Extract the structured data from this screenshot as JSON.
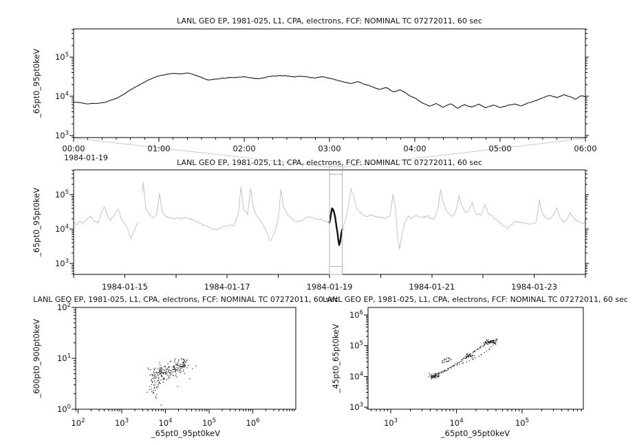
{
  "shared_title": "LANL GEO EP, 1981-025, L1, CPA, electrons, FCF: NOMINAL TC 07272011, 60 sec",
  "chart_data": [
    {
      "id": "zoom-timeseries",
      "type": "line",
      "title": "LANL GEO EP, 1981-025, L1, CPA, electrons, FCF: NOMINAL TC 07272011, 60 sec",
      "ylabel": "_65pt0_95pt0keV",
      "x_date_label": "1984-01-19",
      "x_tick_labels": [
        "00:00",
        "01:00",
        "02:00",
        "03:00",
        "04:00",
        "05:00",
        "06:00"
      ],
      "x_tick_hours": [
        0,
        1,
        2,
        3,
        4,
        5,
        6
      ],
      "x_range_hours": [
        0,
        6
      ],
      "x_minor_step_hours": 0.16667,
      "ylim_exp": [
        2.95,
        5.72
      ],
      "y_major_exponents": [
        3,
        4,
        5
      ],
      "line_color": "#161616",
      "noise": {
        "seed": 3,
        "amplitude": 0.012,
        "substeps": 4
      },
      "series_hour_flux": [
        [
          0,
          7200
        ],
        [
          0.08,
          6900
        ],
        [
          0.17,
          6400
        ],
        [
          0.28,
          6600
        ],
        [
          0.38,
          7100
        ],
        [
          0.5,
          8800
        ],
        [
          0.62,
          12500
        ],
        [
          0.73,
          17500
        ],
        [
          0.83,
          23000
        ],
        [
          0.92,
          28500
        ],
        [
          1,
          33000
        ],
        [
          1.08,
          36000
        ],
        [
          1.17,
          38500
        ],
        [
          1.25,
          37000
        ],
        [
          1.33,
          39500
        ],
        [
          1.42,
          34500
        ],
        [
          1.5,
          30000
        ],
        [
          1.58,
          26000
        ],
        [
          1.67,
          27500
        ],
        [
          1.75,
          29000
        ],
        [
          1.83,
          30000
        ],
        [
          1.92,
          30500
        ],
        [
          2,
          31500
        ],
        [
          2.08,
          29500
        ],
        [
          2.17,
          28000
        ],
        [
          2.25,
          30500
        ],
        [
          2.33,
          33000
        ],
        [
          2.42,
          34000
        ],
        [
          2.5,
          33000
        ],
        [
          2.58,
          31500
        ],
        [
          2.67,
          32500
        ],
        [
          2.75,
          31000
        ],
        [
          2.83,
          29000
        ],
        [
          2.92,
          31500
        ],
        [
          3,
          29000
        ],
        [
          3.08,
          26000
        ],
        [
          3.17,
          23000
        ],
        [
          3.25,
          21000
        ],
        [
          3.33,
          23500
        ],
        [
          3.42,
          20000
        ],
        [
          3.5,
          17500
        ],
        [
          3.58,
          15000
        ],
        [
          3.67,
          16500
        ],
        [
          3.75,
          13000
        ],
        [
          3.83,
          14500
        ],
        [
          3.92,
          11000
        ],
        [
          4,
          9000
        ],
        [
          4.08,
          7000
        ],
        [
          4.17,
          5600
        ],
        [
          4.25,
          6600
        ],
        [
          4.33,
          5200
        ],
        [
          4.42,
          6400
        ],
        [
          4.5,
          5000
        ],
        [
          4.58,
          6100
        ],
        [
          4.67,
          5300
        ],
        [
          4.75,
          6300
        ],
        [
          4.83,
          5100
        ],
        [
          4.92,
          6000
        ],
        [
          5,
          5200
        ],
        [
          5.08,
          5800
        ],
        [
          5.17,
          6400
        ],
        [
          5.25,
          5700
        ],
        [
          5.33,
          6900
        ],
        [
          5.42,
          7800
        ],
        [
          5.5,
          9200
        ],
        [
          5.58,
          10500
        ],
        [
          5.67,
          9200
        ],
        [
          5.75,
          11000
        ],
        [
          5.83,
          9600
        ],
        [
          5.88,
          8400
        ],
        [
          5.95,
          10300
        ],
        [
          6,
          9800
        ]
      ]
    },
    {
      "id": "context-timeseries",
      "type": "line",
      "title": "LANL GEO EP, 1981-025, L1, CPA, electrons, FCF: NOMINAL TC 07272011, 60 sec",
      "ylabel": "_65pt0_95pt0keV",
      "x_tick_days": [
        {
          "day": 15,
          "label": "1984-01-15"
        },
        {
          "day": 17,
          "label": "1984-01-17"
        },
        {
          "day": 19,
          "label": "1984-01-19"
        },
        {
          "day": 21,
          "label": "1984-01-21"
        },
        {
          "day": 23,
          "label": "1984-01-23"
        }
      ],
      "x_range_days": [
        14,
        24
      ],
      "ylim_exp": [
        2.68,
        5.72
      ],
      "y_major_exponents": [
        3,
        4,
        5
      ],
      "line_color": "#c3c3c3",
      "highlight_color": "#111111",
      "selection": {
        "start_day": 19.0,
        "end_day": 19.25,
        "color": "#b0b0b0"
      },
      "gaps": [
        [
          15.26,
          15.34
        ]
      ],
      "noise": {
        "seed": 9,
        "amplitude": 0.034,
        "substeps": 4
      },
      "series_day_flux": [
        [
          14,
          16000
        ],
        [
          14.06,
          13000
        ],
        [
          14.12,
          17000
        ],
        [
          14.18,
          14500
        ],
        [
          14.25,
          19000
        ],
        [
          14.33,
          24000
        ],
        [
          14.4,
          17000
        ],
        [
          14.48,
          15000
        ],
        [
          14.55,
          32000
        ],
        [
          14.6,
          45000
        ],
        [
          14.66,
          24000
        ],
        [
          14.72,
          17000
        ],
        [
          14.8,
          26000
        ],
        [
          14.87,
          38000
        ],
        [
          14.93,
          20000
        ],
        [
          15,
          14000
        ],
        [
          15.06,
          9500
        ],
        [
          15.12,
          5200
        ],
        [
          15.18,
          9000
        ],
        [
          15.24,
          14000
        ],
        [
          15.3,
          17000
        ],
        [
          15.36,
          230000
        ],
        [
          15.41,
          40000
        ],
        [
          15.48,
          26000
        ],
        [
          15.55,
          21000
        ],
        [
          15.62,
          26000
        ],
        [
          15.68,
          110000
        ],
        [
          15.73,
          32000
        ],
        [
          15.8,
          24000
        ],
        [
          15.88,
          21000
        ],
        [
          15.95,
          20000
        ],
        [
          16.03,
          21500
        ],
        [
          16.1,
          19500
        ],
        [
          16.18,
          22000
        ],
        [
          16.26,
          20000
        ],
        [
          16.34,
          18000
        ],
        [
          16.42,
          16000
        ],
        [
          16.5,
          14000
        ],
        [
          16.58,
          12500
        ],
        [
          16.66,
          11000
        ],
        [
          16.74,
          9500
        ],
        [
          16.82,
          10000
        ],
        [
          16.9,
          11000
        ],
        [
          16.98,
          12000
        ],
        [
          17.06,
          13000
        ],
        [
          17.14,
          12500
        ],
        [
          17.22,
          30000
        ],
        [
          17.27,
          170000
        ],
        [
          17.32,
          40000
        ],
        [
          17.4,
          26000
        ],
        [
          17.46,
          150000
        ],
        [
          17.52,
          36000
        ],
        [
          17.6,
          22000
        ],
        [
          17.68,
          15000
        ],
        [
          17.76,
          9000
        ],
        [
          17.84,
          4500
        ],
        [
          17.92,
          7000
        ],
        [
          18,
          20000
        ],
        [
          18.05,
          140000
        ],
        [
          18.1,
          45000
        ],
        [
          18.18,
          26000
        ],
        [
          18.26,
          20000
        ],
        [
          18.34,
          17000
        ],
        [
          18.42,
          16500
        ],
        [
          18.5,
          19000
        ],
        [
          18.58,
          22000
        ],
        [
          18.66,
          21000
        ],
        [
          18.74,
          20000
        ],
        [
          18.82,
          19000
        ],
        [
          18.9,
          17500
        ],
        [
          18.96,
          16000
        ],
        [
          19,
          15000
        ],
        [
          19.03,
          28000
        ],
        [
          19.05,
          40000
        ],
        [
          19.07,
          37000
        ],
        [
          19.09,
          30000
        ],
        [
          19.11,
          22000
        ],
        [
          19.13,
          14000
        ],
        [
          19.15,
          8500
        ],
        [
          19.17,
          5200
        ],
        [
          19.19,
          3400
        ],
        [
          19.21,
          4500
        ],
        [
          19.23,
          7500
        ],
        [
          19.25,
          10000
        ],
        [
          19.28,
          13000
        ],
        [
          19.32,
          20000
        ],
        [
          19.36,
          40000
        ],
        [
          19.42,
          150000
        ],
        [
          19.47,
          90000
        ],
        [
          19.52,
          45000
        ],
        [
          19.58,
          32000
        ],
        [
          19.65,
          26000
        ],
        [
          19.72,
          23000
        ],
        [
          19.8,
          26000
        ],
        [
          19.88,
          24000
        ],
        [
          19.95,
          22500
        ],
        [
          20.02,
          21000
        ],
        [
          20.1,
          20000
        ],
        [
          20.18,
          24000
        ],
        [
          20.24,
          100000
        ],
        [
          20.29,
          38000
        ],
        [
          20.33,
          6000
        ],
        [
          20.37,
          2600
        ],
        [
          20.42,
          7000
        ],
        [
          20.47,
          16000
        ],
        [
          20.54,
          23000
        ],
        [
          20.61,
          21000
        ],
        [
          20.68,
          25000
        ],
        [
          20.75,
          23000
        ],
        [
          20.83,
          22000
        ],
        [
          20.9,
          23500
        ],
        [
          20.97,
          21000
        ],
        [
          21.04,
          19000
        ],
        [
          21.12,
          40000
        ],
        [
          21.17,
          140000
        ],
        [
          21.22,
          60000
        ],
        [
          21.28,
          35000
        ],
        [
          21.35,
          27000
        ],
        [
          21.42,
          24000
        ],
        [
          21.48,
          38000
        ],
        [
          21.53,
          95000
        ],
        [
          21.58,
          48000
        ],
        [
          21.65,
          31000
        ],
        [
          21.72,
          34000
        ],
        [
          21.79,
          60000
        ],
        [
          21.84,
          32000
        ],
        [
          21.9,
          26000
        ],
        [
          21.97,
          27000
        ],
        [
          22.04,
          52000
        ],
        [
          22.09,
          31000
        ],
        [
          22.16,
          25000
        ],
        [
          22.24,
          20000
        ],
        [
          22.32,
          15500
        ],
        [
          22.4,
          12500
        ],
        [
          22.48,
          10500
        ],
        [
          22.56,
          13500
        ],
        [
          22.64,
          17000
        ],
        [
          22.72,
          15500
        ],
        [
          22.8,
          15000
        ],
        [
          22.88,
          14000
        ],
        [
          22.96,
          14500
        ],
        [
          23.04,
          16000
        ],
        [
          23.1,
          70000
        ],
        [
          23.15,
          32000
        ],
        [
          23.22,
          21000
        ],
        [
          23.3,
          19000
        ],
        [
          23.38,
          26000
        ],
        [
          23.44,
          42000
        ],
        [
          23.5,
          22000
        ],
        [
          23.57,
          15500
        ],
        [
          23.64,
          18500
        ],
        [
          23.7,
          30000
        ],
        [
          23.77,
          21000
        ],
        [
          23.85,
          16500
        ],
        [
          23.93,
          15000
        ],
        [
          24,
          14500
        ]
      ]
    },
    {
      "id": "scatter-600-900",
      "type": "scatter",
      "title": "LANL GEO EP, 1981-025, L1, CPA, electrons, FCF: NOMINAL TC 07272011, 60 sec",
      "xlabel": "_65pt0_95pt0keV",
      "ylabel": "_600pt0_900pt0keV",
      "xlim_exp": [
        1.945,
        6.984
      ],
      "x_major_exponents": [
        2,
        3,
        4,
        5,
        6
      ],
      "ylim_exp": [
        0,
        2
      ],
      "y_major_exponents": [
        0,
        1,
        2
      ],
      "dot_color": "#1b1b1b",
      "seed": 7,
      "clusters_logxy": [
        {
          "cx": 3.78,
          "cy": 0.6,
          "sx": 0.1,
          "sy": 0.15,
          "n": 60
        },
        {
          "cx": 3.97,
          "cy": 0.72,
          "sx": 0.1,
          "sy": 0.13,
          "n": 60
        },
        {
          "cx": 4.18,
          "cy": 0.8,
          "sx": 0.1,
          "sy": 0.11,
          "n": 55
        },
        {
          "cx": 4.4,
          "cy": 0.86,
          "sx": 0.09,
          "sy": 0.09,
          "n": 50
        },
        {
          "cx": 3.72,
          "cy": 0.38,
          "sx": 0.06,
          "sy": 0.1,
          "n": 14
        }
      ],
      "outliers_logxy": [
        [
          3.79,
          0.22
        ],
        [
          3.9,
          0.08
        ],
        [
          4.55,
          0.6
        ],
        [
          4.62,
          0.8
        ],
        [
          3.58,
          0.33
        ],
        [
          4.28,
          0.45
        ],
        [
          4.7,
          0.85
        ]
      ]
    },
    {
      "id": "scatter-45-65",
      "type": "scatter",
      "title": "LANL GEO EP, 1981-025, L1, CPA, electrons, FCF: NOMINAL TC 07272011, 60 sec",
      "xlabel": "_65pt0_95pt0keV",
      "ylabel": "_45pt0_65pt0keV",
      "xlim_exp": [
        2.654,
        5.93
      ],
      "x_major_exponents": [
        3,
        4,
        5
      ],
      "ylim_exp": [
        2.93,
        6.24
      ],
      "y_major_exponents": [
        3,
        4,
        5,
        6
      ],
      "dot_color": "#1b1b1b",
      "seed": 5,
      "branches_logxy": {
        "upper": [
          [
            3.62,
            3.96
          ],
          [
            3.67,
            4.04
          ],
          [
            3.73,
            4.1
          ],
          [
            3.8,
            4.16
          ],
          [
            3.87,
            4.23
          ],
          [
            3.95,
            4.33
          ],
          [
            4.03,
            4.45
          ],
          [
            4.12,
            4.58
          ],
          [
            4.2,
            4.7
          ],
          [
            4.28,
            4.82
          ],
          [
            4.35,
            4.92
          ],
          [
            4.42,
            5.02
          ],
          [
            4.5,
            5.1
          ],
          [
            4.57,
            5.17
          ],
          [
            4.62,
            5.2
          ],
          [
            4.59,
            5.09
          ]
        ],
        "return": [
          [
            4.59,
            5.09
          ],
          [
            4.5,
            4.88
          ],
          [
            4.38,
            4.7
          ],
          [
            4.25,
            4.56
          ],
          [
            4.1,
            4.43
          ],
          [
            3.95,
            4.33
          ],
          [
            3.83,
            4.21
          ],
          [
            3.73,
            4.08
          ],
          [
            3.66,
            3.99
          ],
          [
            3.62,
            3.96
          ]
        ],
        "hook": [
          [
            3.78,
            4.47
          ],
          [
            3.82,
            4.55
          ],
          [
            3.88,
            4.61
          ],
          [
            3.91,
            4.55
          ],
          [
            3.86,
            4.48
          ],
          [
            3.79,
            4.45
          ]
        ]
      },
      "clusters_logxy": [
        {
          "cx": 3.66,
          "cy": 4.02,
          "sx": 0.05,
          "sy": 0.06,
          "n": 45
        },
        {
          "cx": 4.52,
          "cy": 5.12,
          "sx": 0.07,
          "sy": 0.05,
          "n": 45
        },
        {
          "cx": 4.2,
          "cy": 4.66,
          "sx": 0.05,
          "sy": 0.05,
          "n": 25
        }
      ]
    }
  ]
}
